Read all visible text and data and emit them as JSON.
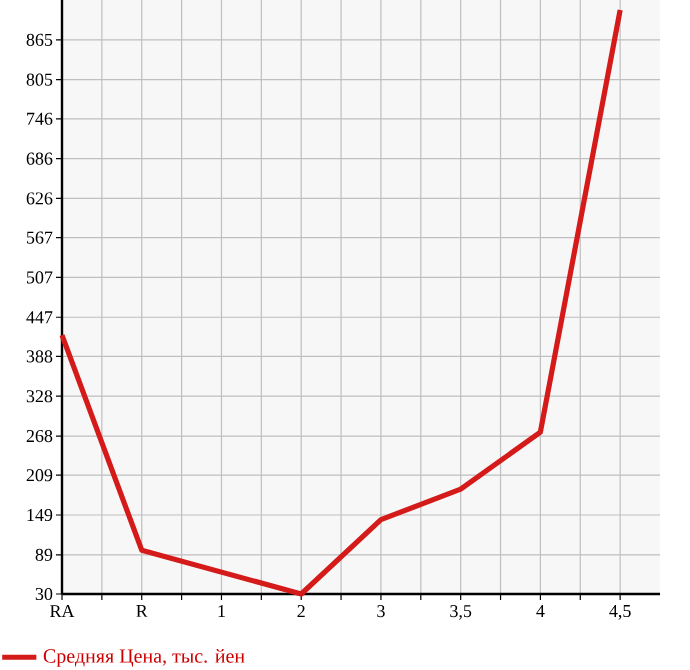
{
  "chart_data": {
    "type": "line",
    "categories": [
      "RA",
      "R",
      "1",
      "2",
      "3",
      "3,5",
      "4",
      "4,5"
    ],
    "series": [
      {
        "name": "Средняя Цена, тыс. йен",
        "color": "#d51a1a",
        "values": [
          420,
          96,
          63,
          30,
          142,
          188,
          274,
          910
        ]
      }
    ],
    "ylim": [
      30,
      925
    ],
    "yticks": [
      30,
      89,
      149,
      209,
      268,
      328,
      388,
      447,
      507,
      567,
      626,
      686,
      746,
      805,
      865
    ],
    "grid": true,
    "legend": "bottom",
    "marker": "none",
    "line_style": "solid"
  }
}
